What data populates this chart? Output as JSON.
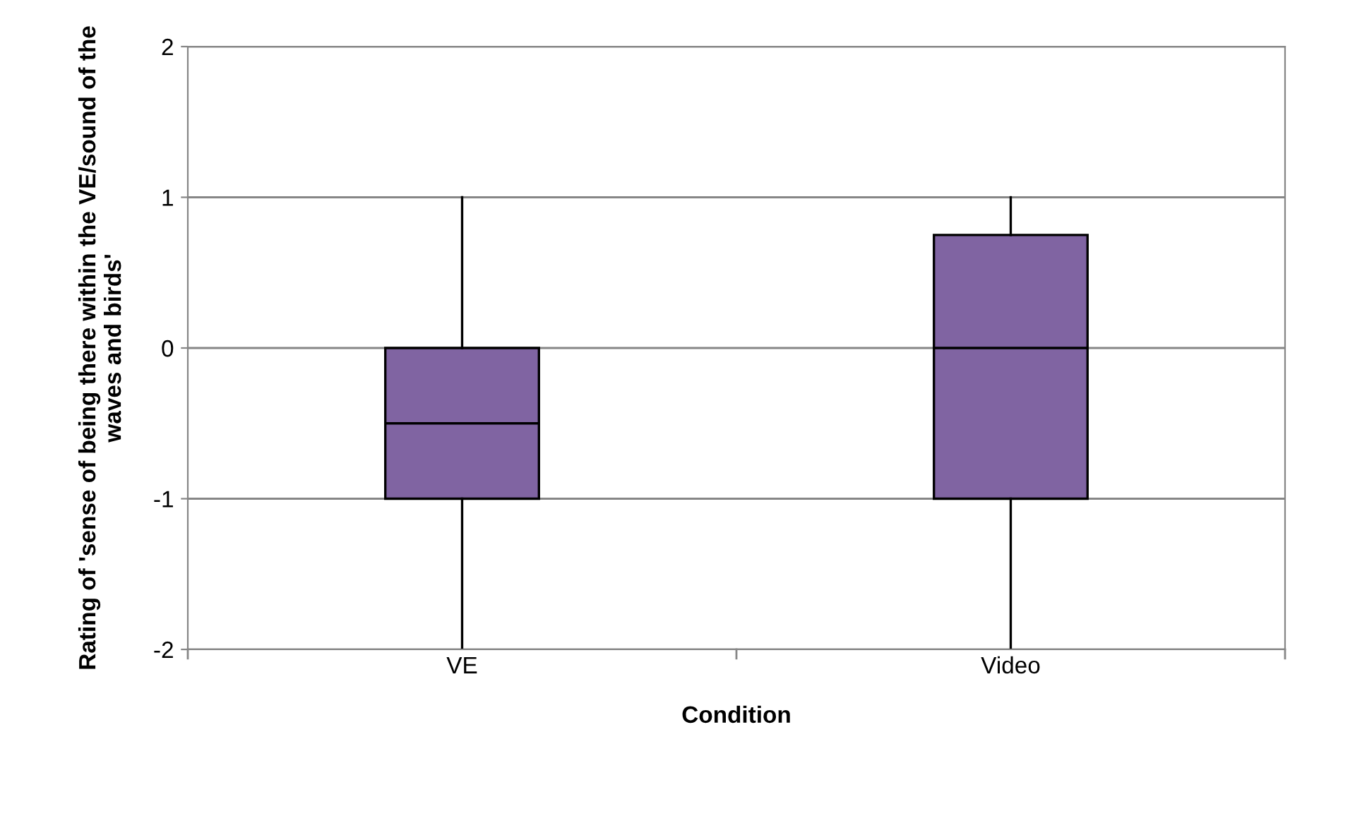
{
  "chart_data": {
    "type": "box",
    "xlabel": "Condition",
    "ylabel": "Rating of 'sense of being there within the VE/sound of the waves and birds'",
    "categories": [
      "VE",
      "Video"
    ],
    "boxes": [
      {
        "low": -2,
        "q1": -1,
        "median": -0.5,
        "q3": 0,
        "high": 1
      },
      {
        "low": -2,
        "q1": -1,
        "median": 0,
        "q3": 0.75,
        "high": 1
      }
    ],
    "color": "#8064a2",
    "ylim": [
      -2,
      2
    ],
    "yticks": [
      -2,
      -1,
      0,
      1,
      2
    ],
    "grid": "y",
    "legend": false
  }
}
